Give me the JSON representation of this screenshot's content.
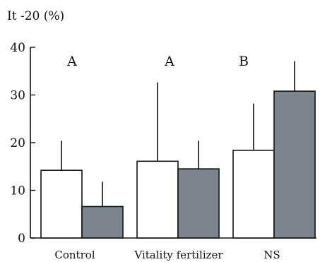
{
  "chart_data": {
    "type": "bar",
    "ylabel": "It -20 (%)",
    "ylim": [
      0,
      40
    ],
    "yticks": [
      0,
      10,
      20,
      30,
      40
    ],
    "categories": [
      "Control",
      "Vitality fertilizer",
      "NS"
    ],
    "group_letters": [
      "A",
      "A",
      "B"
    ],
    "grid": false,
    "legend": "none",
    "series": [
      {
        "color": "#ffffff",
        "values": [
          14.2,
          16.1,
          18.4
        ],
        "error": [
          6.2,
          16.5,
          9.8
        ]
      },
      {
        "color": "#7d858c",
        "values": [
          6.6,
          14.5,
          30.8
        ],
        "error": [
          5.2,
          5.9,
          6.3
        ]
      }
    ]
  }
}
